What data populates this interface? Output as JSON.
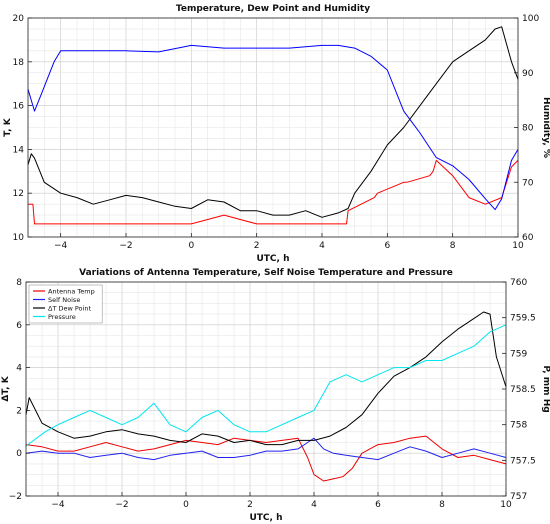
{
  "chart_data": [
    {
      "type": "line",
      "title": "Temperature, Dew Point and Humidity",
      "xlabel": "UTC, h",
      "ylabel": "T, K",
      "ylabel_right": "Humidity, %",
      "xlim": [
        -5,
        10
      ],
      "ylim": [
        10,
        20
      ],
      "ylim_right": [
        60,
        100
      ],
      "xticks": [
        -4,
        -2,
        0,
        2,
        4,
        6,
        8,
        10
      ],
      "yticks": [
        10,
        12,
        14,
        16,
        18,
        20
      ],
      "yticks_right": [
        60,
        70,
        80,
        90,
        100
      ],
      "grid": true,
      "series": [
        {
          "color": "#ff0000",
          "axis": "left",
          "x": [
            -5.0,
            -4.85,
            -4.8,
            -4.0,
            -3.5,
            -3.2,
            -3.1,
            -2.0,
            -1.0,
            0.0,
            1.0,
            2.0,
            3.0,
            4.0,
            4.75,
            4.8,
            5.6,
            5.7,
            6.5,
            6.6,
            7.3,
            7.4,
            7.5,
            8.0,
            8.5,
            9.0,
            9.5,
            9.8,
            10.0
          ],
          "values": [
            11.5,
            11.5,
            10.6,
            10.6,
            10.6,
            10.6,
            10.6,
            10.6,
            10.6,
            10.6,
            11.0,
            10.6,
            10.6,
            10.6,
            10.6,
            11.2,
            11.8,
            12.0,
            12.5,
            12.5,
            12.8,
            13.0,
            13.5,
            12.8,
            11.8,
            11.5,
            11.8,
            13.2,
            13.5
          ]
        },
        {
          "color": "#000000",
          "axis": "left",
          "x": [
            -5.0,
            -4.9,
            -4.8,
            -4.5,
            -4.0,
            -3.5,
            -3.0,
            -2.5,
            -2.0,
            -1.5,
            -1.0,
            -0.5,
            0.0,
            0.5,
            1.0,
            1.5,
            2.0,
            2.5,
            3.0,
            3.5,
            4.0,
            4.5,
            4.8,
            5.0,
            5.5,
            6.0,
            6.5,
            7.0,
            7.5,
            8.0,
            8.5,
            9.0,
            9.3,
            9.5,
            9.8,
            10.0
          ],
          "values": [
            13.3,
            13.8,
            13.6,
            12.5,
            12.0,
            11.8,
            11.5,
            11.7,
            11.9,
            11.8,
            11.6,
            11.4,
            11.3,
            11.7,
            11.6,
            11.2,
            11.2,
            11.0,
            11.0,
            11.2,
            10.9,
            11.1,
            11.3,
            12.0,
            13.0,
            14.2,
            15.0,
            16.0,
            17.0,
            18.0,
            18.5,
            19.0,
            19.5,
            19.6,
            18.0,
            17.2
          ]
        },
        {
          "color": "#0000ff",
          "axis": "right",
          "x": [
            -5.0,
            -4.8,
            -4.6,
            -4.4,
            -4.2,
            -4.0,
            -3.5,
            -3.0,
            -2.0,
            -1.0,
            0.0,
            1.0,
            2.0,
            3.0,
            4.0,
            4.5,
            5.0,
            5.5,
            6.0,
            6.5,
            7.0,
            7.5,
            8.0,
            8.5,
            9.0,
            9.3,
            9.5,
            9.8,
            10.0
          ],
          "values": [
            87,
            83,
            86,
            89,
            92,
            94,
            94,
            94,
            94,
            93.8,
            95,
            94.5,
            94.5,
            94.5,
            95,
            95,
            94.5,
            93,
            90.5,
            83,
            79,
            74.5,
            73,
            70.5,
            67,
            65,
            67,
            74,
            76
          ]
        }
      ]
    },
    {
      "type": "line",
      "title": "Variations of Antenna Temperature, Self Noise Temperature and Pressure",
      "xlabel": "UTC, h",
      "ylabel": "ΔT, K",
      "ylabel_right": "P, mm Hg",
      "xlim": [
        -5,
        10
      ],
      "ylim": [
        -2,
        8
      ],
      "ylim_right": [
        757,
        760
      ],
      "xticks": [
        -4,
        -2,
        0,
        2,
        4,
        6,
        8,
        10
      ],
      "yticks": [
        -2,
        0,
        2,
        4,
        6,
        8
      ],
      "yticks_right": [
        757,
        757.5,
        758,
        758.5,
        759,
        759.5,
        760
      ],
      "grid": true,
      "legend_position": "top-left",
      "series": [
        {
          "name": "Antenna Temp",
          "color": "#ee0000",
          "axis": "left",
          "x": [
            -5.0,
            -4.5,
            -4.0,
            -3.5,
            -3.0,
            -2.5,
            -2.0,
            -1.5,
            -1.0,
            -0.5,
            0.0,
            0.5,
            1.0,
            1.5,
            2.0,
            2.5,
            3.0,
            3.5,
            3.8,
            4.0,
            4.3,
            4.6,
            4.9,
            5.2,
            5.5,
            6.0,
            6.5,
            7.0,
            7.5,
            8.0,
            8.5,
            9.0,
            9.5,
            10.0
          ],
          "values": [
            0.4,
            0.3,
            0.1,
            0.1,
            0.3,
            0.5,
            0.3,
            0.1,
            0.2,
            0.4,
            0.6,
            0.5,
            0.4,
            0.7,
            0.6,
            0.5,
            0.6,
            0.7,
            -0.2,
            -1.0,
            -1.3,
            -1.2,
            -1.1,
            -0.7,
            0.0,
            0.4,
            0.5,
            0.7,
            0.8,
            0.2,
            -0.2,
            -0.1,
            -0.3,
            -0.5
          ]
        },
        {
          "name": "Self Noise",
          "color": "#2222ee",
          "axis": "left",
          "x": [
            -5.0,
            -4.5,
            -4.0,
            -3.5,
            -3.0,
            -2.5,
            -2.0,
            -1.5,
            -1.0,
            -0.5,
            0.0,
            0.5,
            1.0,
            1.5,
            2.0,
            2.5,
            3.0,
            3.5,
            3.8,
            4.0,
            4.3,
            4.6,
            5.0,
            5.5,
            6.0,
            6.5,
            7.0,
            7.5,
            8.0,
            8.5,
            9.0,
            9.5,
            10.0
          ],
          "values": [
            0.0,
            0.1,
            0.0,
            0.0,
            -0.2,
            -0.1,
            0.0,
            -0.2,
            -0.3,
            -0.1,
            0.0,
            0.1,
            -0.2,
            -0.2,
            -0.1,
            0.1,
            0.1,
            0.2,
            0.5,
            0.7,
            0.2,
            0.0,
            -0.1,
            -0.2,
            -0.3,
            0.0,
            0.3,
            0.1,
            -0.2,
            0.0,
            0.2,
            0.0,
            -0.2
          ]
        },
        {
          "name": "ΔT Dew Point",
          "color": "#000000",
          "axis": "left",
          "x": [
            -5.0,
            -4.9,
            -4.7,
            -4.5,
            -4.0,
            -3.5,
            -3.0,
            -2.5,
            -2.0,
            -1.5,
            -1.0,
            -0.5,
            0.0,
            0.5,
            1.0,
            1.5,
            2.0,
            2.5,
            3.0,
            3.5,
            4.0,
            4.5,
            5.0,
            5.5,
            6.0,
            6.5,
            7.0,
            7.5,
            8.0,
            8.5,
            9.0,
            9.3,
            9.5,
            9.7,
            10.0
          ],
          "values": [
            1.8,
            2.6,
            2.0,
            1.4,
            1.0,
            0.7,
            0.8,
            1.0,
            1.1,
            0.9,
            0.8,
            0.6,
            0.5,
            0.9,
            0.8,
            0.5,
            0.6,
            0.4,
            0.4,
            0.6,
            0.6,
            0.8,
            1.2,
            1.8,
            2.8,
            3.6,
            4.0,
            4.5,
            5.2,
            5.8,
            6.3,
            6.6,
            6.5,
            4.5,
            3.1
          ]
        },
        {
          "name": "Pressure",
          "color": "#00e5ee",
          "axis": "right",
          "x": [
            -5.0,
            -4.7,
            -4.4,
            -4.0,
            -3.5,
            -3.0,
            -2.5,
            -2.0,
            -1.5,
            -1.0,
            -0.5,
            0.0,
            0.5,
            1.0,
            1.5,
            2.0,
            2.5,
            3.0,
            3.5,
            4.0,
            4.5,
            5.0,
            5.5,
            6.0,
            6.5,
            7.0,
            7.5,
            8.0,
            8.5,
            9.0,
            9.5,
            10.0
          ],
          "values": [
            757.7,
            757.8,
            757.9,
            758.0,
            758.1,
            758.2,
            758.1,
            758.0,
            758.1,
            758.3,
            758.0,
            757.9,
            758.1,
            758.2,
            758.0,
            757.9,
            757.9,
            758.0,
            758.1,
            758.2,
            758.6,
            758.7,
            758.6,
            758.7,
            758.8,
            758.8,
            758.9,
            758.9,
            759.0,
            759.1,
            759.3,
            759.4
          ]
        }
      ]
    }
  ]
}
